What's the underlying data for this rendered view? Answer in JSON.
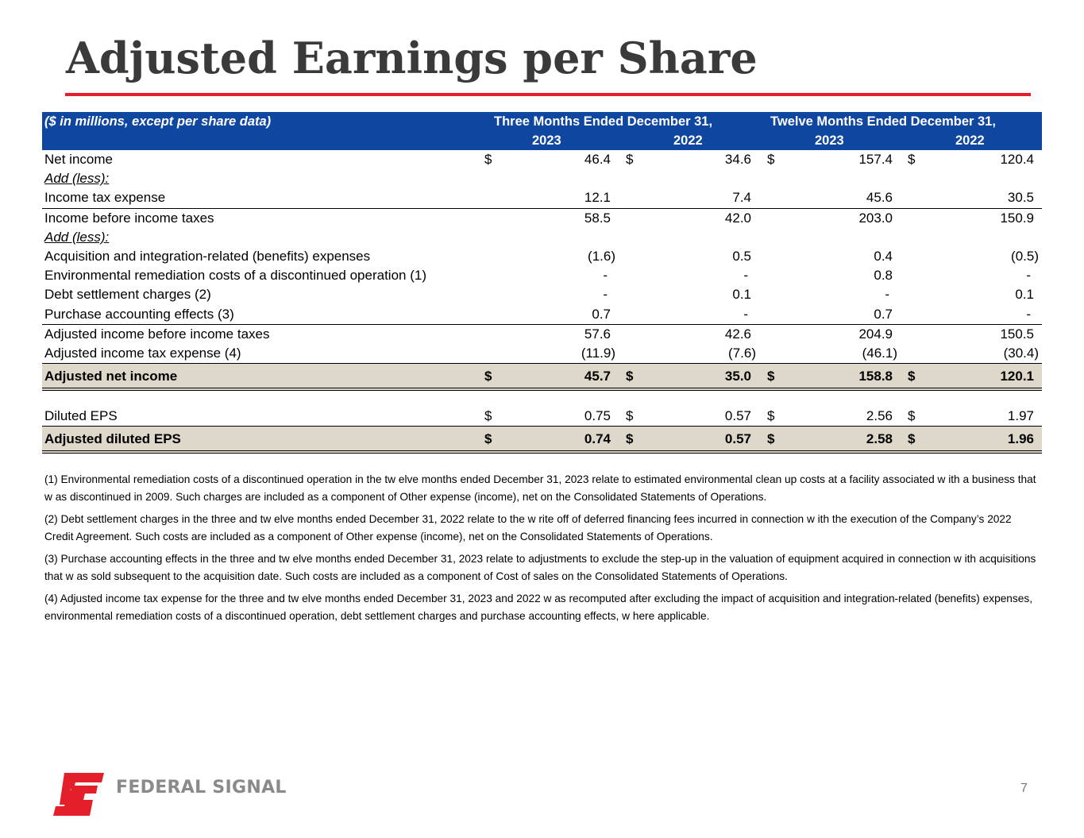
{
  "title": "Adjusted Earnings per Share",
  "colors": {
    "accent_rule": "#e3202a",
    "header_bg": "#0f47a0",
    "total_bg": "#ddd8c9"
  },
  "header": {
    "label": "($ in millions, except per share data)",
    "group1": "Three Months Ended December 31,",
    "group2": "Twelve Months Ended December 31,",
    "years": [
      "2023",
      "2022",
      "2023",
      "2022"
    ]
  },
  "rows": [
    {
      "label": "Net income",
      "cur": true,
      "values": [
        "46.4",
        "34.6",
        "157.4",
        "120.4"
      ]
    },
    {
      "label": "Add (less):",
      "section": true
    },
    {
      "label": "Income tax expense",
      "values": [
        "12.1",
        "7.4",
        "45.6",
        "30.5"
      ],
      "underline": true
    },
    {
      "label": "Income before income taxes",
      "values": [
        "58.5",
        "42.0",
        "203.0",
        "150.9"
      ]
    },
    {
      "label": "Add (less):",
      "section": true
    },
    {
      "label": "Acquisition and integration-related (benefits) expenses",
      "values": [
        "(1.6)",
        "0.5",
        "0.4",
        "(0.5)"
      ]
    },
    {
      "label": "Environmental remediation costs of a discontinued operation (1)",
      "values": [
        "-",
        "-",
        "0.8",
        "-"
      ]
    },
    {
      "label": "Debt settlement charges (2)",
      "values": [
        "-",
        "0.1",
        "-",
        "0.1"
      ]
    },
    {
      "label": "Purchase accounting effects (3)",
      "values": [
        "0.7",
        "-",
        "0.7",
        "-"
      ],
      "underline": true
    },
    {
      "label": "Adjusted income before income taxes",
      "values": [
        "57.6",
        "42.6",
        "204.9",
        "150.5"
      ]
    },
    {
      "label": "Adjusted income tax expense (4)",
      "values": [
        "(11.9)",
        "(7.6)",
        "(46.1)",
        "(30.4)"
      ]
    },
    {
      "label": "Adjusted net income",
      "cur": true,
      "total": true,
      "values": [
        "45.7",
        "35.0",
        "158.8",
        "120.1"
      ]
    },
    {
      "spacer": true
    },
    {
      "label": "Diluted EPS",
      "cur": true,
      "values": [
        "0.75",
        "0.57",
        "2.56",
        "1.97"
      ]
    },
    {
      "label": "Adjusted diluted EPS",
      "cur": true,
      "total": true,
      "values": [
        "0.74",
        "0.57",
        "2.58",
        "1.96"
      ]
    }
  ],
  "currency_symbol": "$",
  "notes": [
    "(1) Environmental remediation costs of a discontinued operation in the tw elve months ended December 31, 2023 relate to estimated environmental clean up costs at a facility associated w ith a business that w as discontinued in 2009. Such charges are included as a component of Other expense (income), net on the Consolidated Statements of Operations.",
    "(2) Debt settlement charges in the three and tw elve months ended December 31, 2022 relate to the w rite off of deferred financing fees incurred in connection w ith the execution of the Company’s 2022 Credit Agreement. Such costs are included as a component of Other expense (income), net on the Consolidated Statements of Operations.",
    "(3) Purchase accounting effects in the three and tw elve months ended December 31, 2023 relate to adjustments to exclude the step-up in the valuation of equipment acquired in connection w ith acquisitions that w as sold subsequent to the acquisition date. Such costs are included as a component of Cost of sales on the Consolidated Statements of Operations.",
    "(4) Adjusted income tax expense for the three and tw elve months ended December 31, 2023 and 2022 w as recomputed after excluding the impact of acquisition and integration-related (benefits) expenses, environmental remediation costs of a discontinued operation, debt settlement charges and purchase accounting effects, w here applicable."
  ],
  "logo_text": "FEDERAL SIGNAL",
  "page_number": "7"
}
